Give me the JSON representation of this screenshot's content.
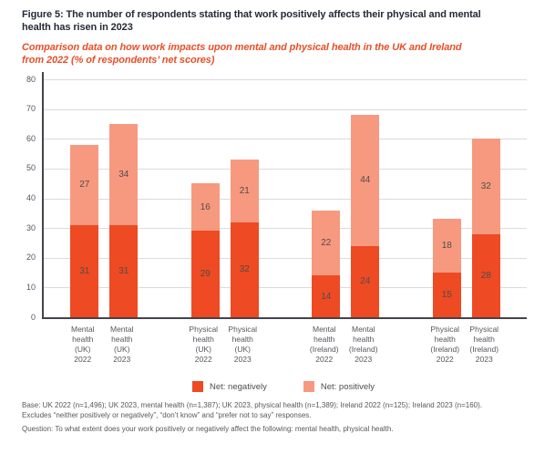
{
  "figure": {
    "title_lines": [
      "Figure 5: The number of respondents stating that work positively affects their physical and mental",
      "health has risen in 2023"
    ],
    "subtitle_lines": [
      "Comparison data on how work impacts upon mental and physical health in the UK and Ireland",
      "from 2022 (% of respondents’ net scores)"
    ]
  },
  "chart_data": {
    "type": "bar",
    "stacked": true,
    "title": "Figure 5: The number of respondents stating that work positively affects their physical and mental health has risen in 2023",
    "subtitle": "Comparison data on how work impacts upon mental and physical health in the UK and Ireland from 2022 (% of respondents’ net scores)",
    "ylim": [
      0,
      80
    ],
    "yticks": [
      0,
      10,
      20,
      30,
      40,
      50,
      60,
      70,
      80
    ],
    "grid": true,
    "legend_position": "bottom",
    "categories": [
      "Mental health (UK) 2022",
      "Mental health (UK) 2023",
      "Physical health (UK) 2022",
      "Physical health (UK) 2023",
      "Mental health (Ireland) 2022",
      "Mental health (Ireland) 2023",
      "Physical health (Ireland) 2022",
      "Physical health (Ireland) 2023"
    ],
    "category_label_lines": [
      [
        "Mental",
        "health",
        "(UK)",
        "2022"
      ],
      [
        "Mental",
        "health",
        "(UK)",
        "2023"
      ],
      [
        "Physical",
        "health",
        "(UK)",
        "2022"
      ],
      [
        "Physical",
        "health",
        "(UK)",
        "2023"
      ],
      [
        "Mental",
        "health",
        "(Ireland)",
        "2022"
      ],
      [
        "Mental",
        "health",
        "(Ireland)",
        "2023"
      ],
      [
        "Physical",
        "health",
        "(Ireland)",
        "2022"
      ],
      [
        "Physical",
        "health",
        "(Ireland)",
        "2023"
      ]
    ],
    "series": [
      {
        "name": "Net: negatively",
        "color": "#ee4a23",
        "values": [
          31,
          31,
          29,
          32,
          14,
          24,
          15,
          28
        ]
      },
      {
        "name": "Net: positively",
        "color": "#f7997f",
        "values": [
          27,
          34,
          16,
          21,
          22,
          44,
          18,
          32
        ]
      }
    ],
    "totals": [
      58,
      65,
      45,
      53,
      36,
      68,
      33,
      60
    ]
  },
  "footer": {
    "base_lines": [
      "Base: UK 2022 (n=1,496); UK 2023, mental health (n=1,387); UK 2023, physical health (n=1,389); Ireland 2022 (n=125); Ireland 2023 (n=160).",
      "Excludes “neither positively or negatively”, “don’t know” and “prefer not to say” responses."
    ],
    "question": "Question: To what extent does your work positively or negatively affect the following: mental health, physical health."
  },
  "colors": {
    "negative_bar": "#ee4a23",
    "positive_bar": "#f7997f",
    "title_text": "#242b36",
    "subtitle_text": "#e84f27",
    "axis_text": "#55565a",
    "value_label_text": "#514c4b",
    "grid_line": "#dbdbdb",
    "axis_line": "#43444a"
  }
}
